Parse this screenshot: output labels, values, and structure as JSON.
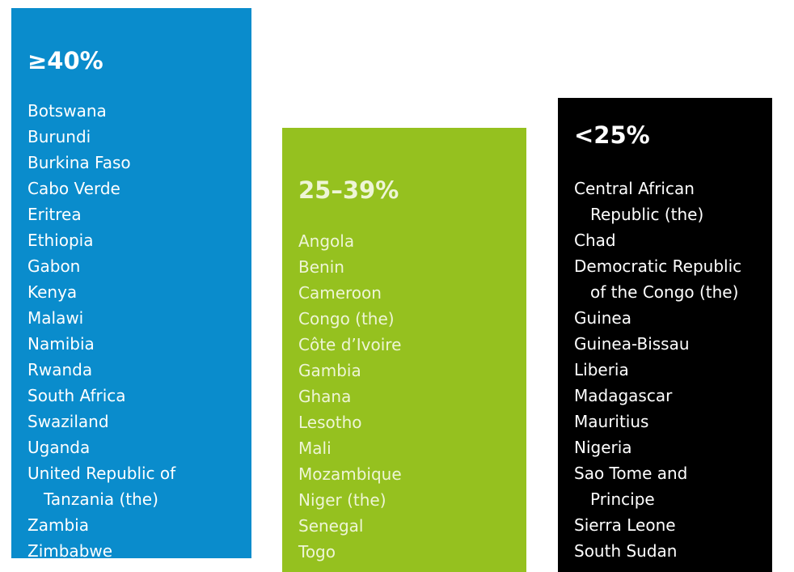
{
  "columns": [
    {
      "heading": "≥40%",
      "items": [
        [
          "Botswana"
        ],
        [
          "Burundi"
        ],
        [
          "Burkina Faso"
        ],
        [
          "Cabo Verde"
        ],
        [
          "Eritrea"
        ],
        [
          "Ethiopia"
        ],
        [
          "Gabon"
        ],
        [
          "Kenya"
        ],
        [
          "Malawi"
        ],
        [
          "Namibia"
        ],
        [
          "Rwanda"
        ],
        [
          "South Africa"
        ],
        [
          "Swaziland"
        ],
        [
          "Uganda"
        ],
        [
          "United Republic of",
          "Tanzania (the)"
        ],
        [
          "Zambia"
        ],
        [
          "Zimbabwe"
        ]
      ]
    },
    {
      "heading": "25–39%",
      "items": [
        [
          "Angola"
        ],
        [
          "Benin"
        ],
        [
          "Cameroon"
        ],
        [
          "Congo (the)"
        ],
        [
          "Côte d’Ivoire"
        ],
        [
          "Gambia"
        ],
        [
          "Ghana"
        ],
        [
          "Lesotho"
        ],
        [
          "Mali"
        ],
        [
          "Mozambique"
        ],
        [
          "Niger (the)"
        ],
        [
          "Senegal"
        ],
        [
          "Togo"
        ]
      ]
    },
    {
      "heading": "<25%",
      "items": [
        [
          "Central African",
          "Republic (the)"
        ],
        [
          "Chad"
        ],
        [
          "Democratic Republic",
          "of the Congo (the)"
        ],
        [
          "Guinea"
        ],
        [
          "Guinea-Bissau"
        ],
        [
          "Liberia"
        ],
        [
          "Madagascar"
        ],
        [
          "Mauritius"
        ],
        [
          "Nigeria"
        ],
        [
          "Sao Tome and",
          "Principe"
        ],
        [
          "Sierra Leone"
        ],
        [
          "South Sudan"
        ]
      ]
    }
  ]
}
